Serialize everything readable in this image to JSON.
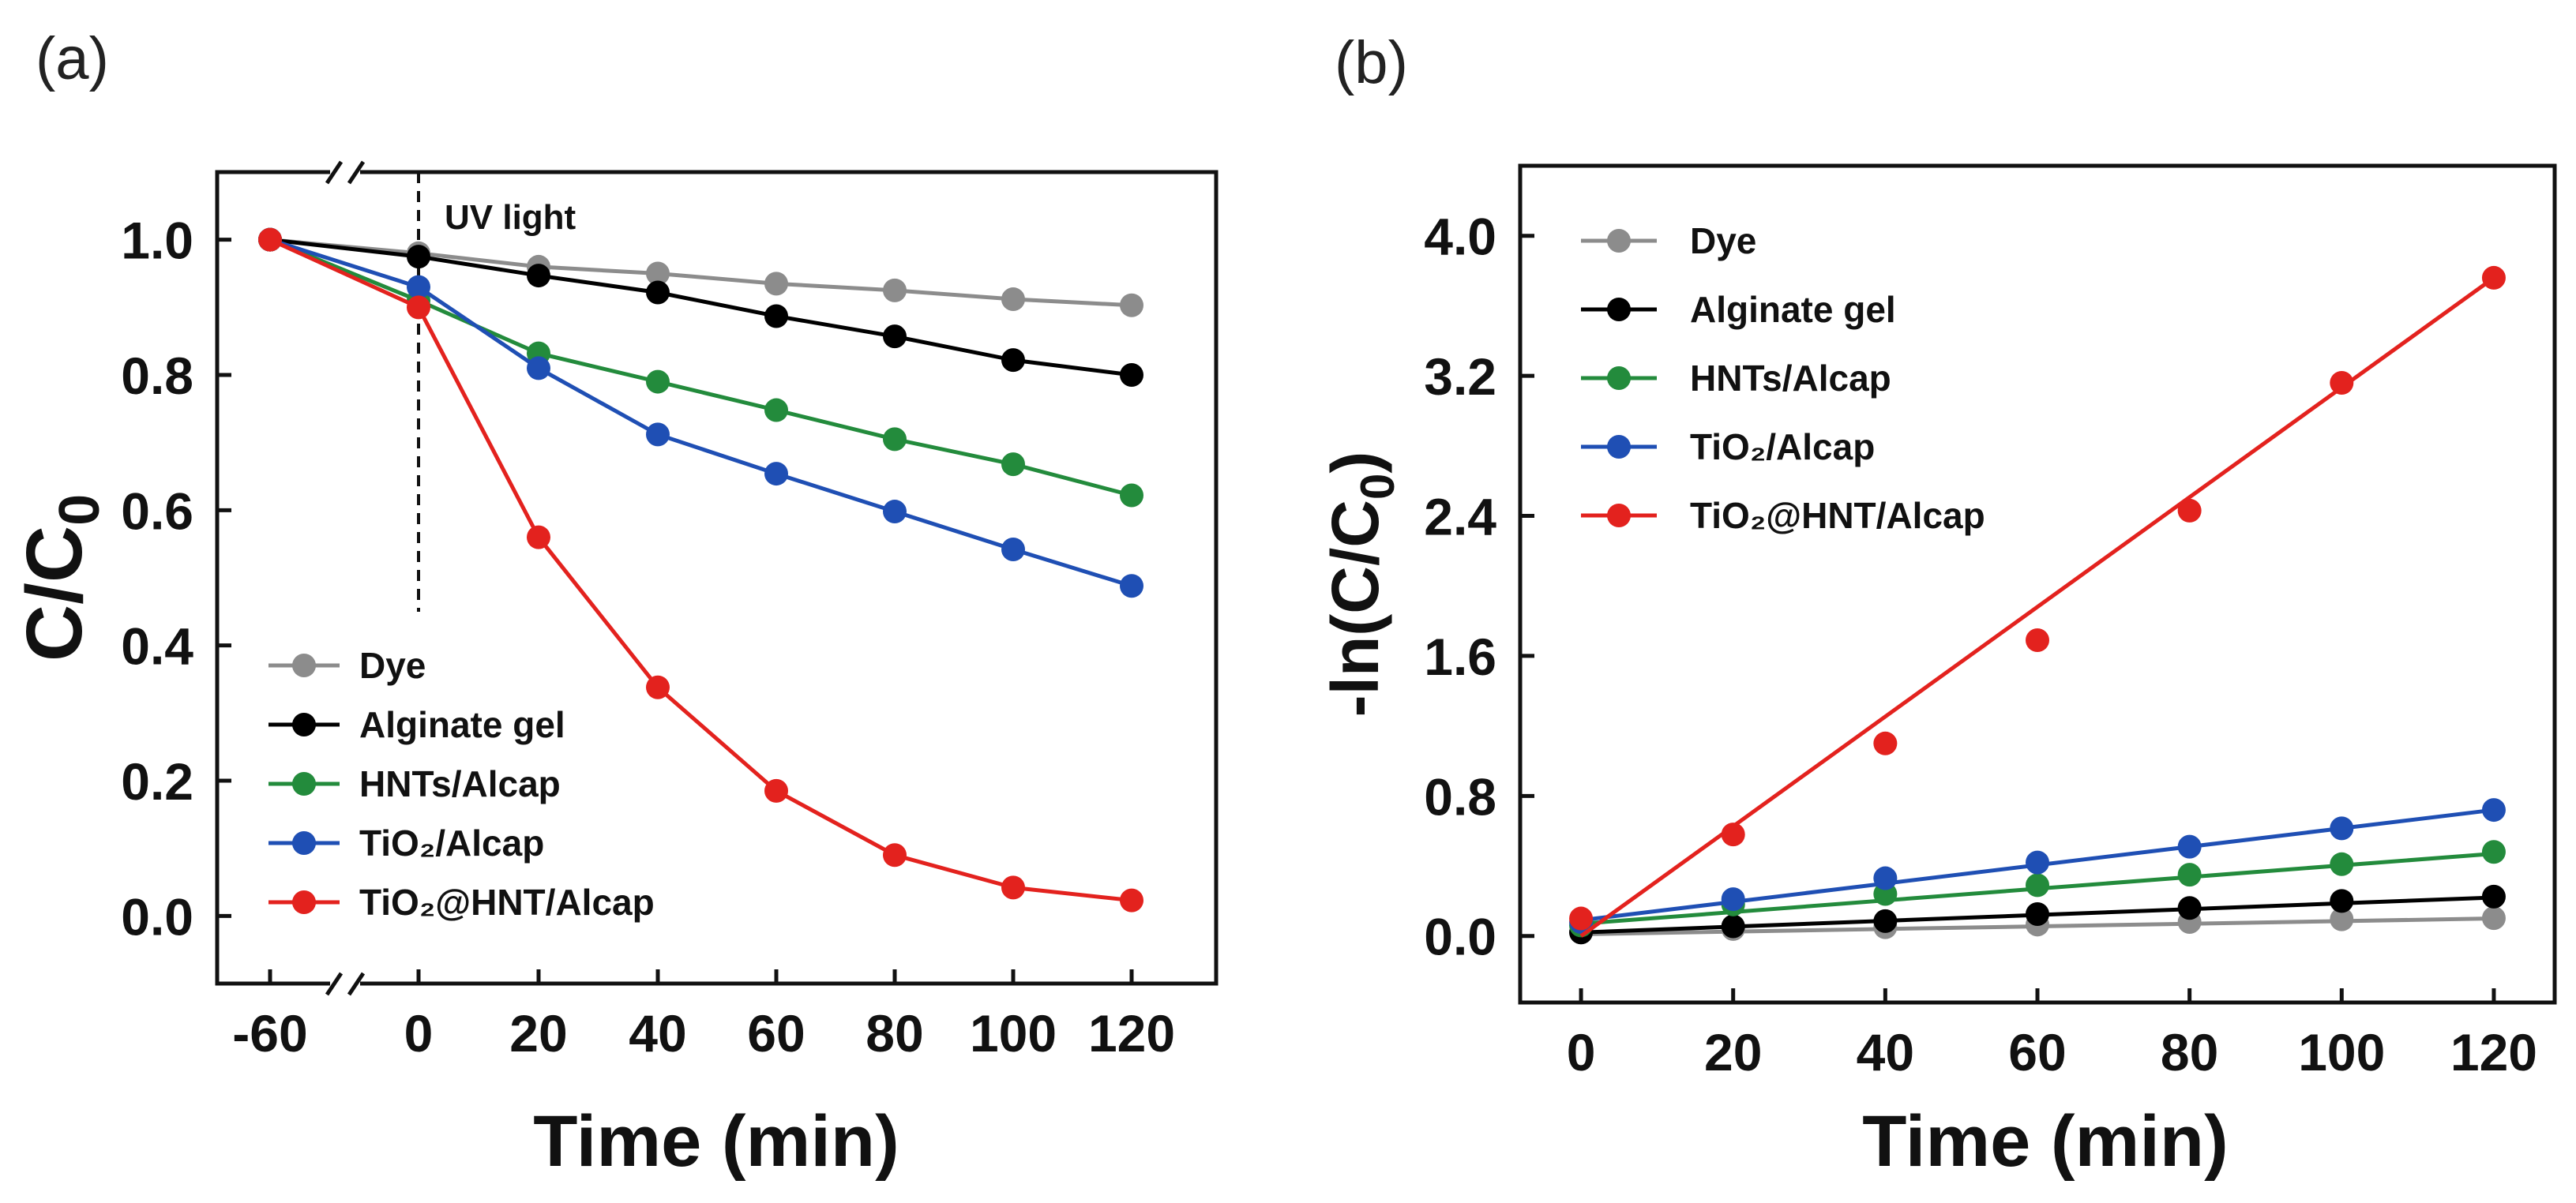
{
  "chart_data": [
    {
      "type": "line",
      "panel_label": "(a)",
      "xlabel": "Time (min)",
      "ylabel_main": "C/C",
      "ylabel_sub": "0",
      "x": [
        -60,
        0,
        20,
        40,
        60,
        80,
        100,
        120
      ],
      "x_ticks": [
        "-60",
        "0",
        "20",
        "40",
        "60",
        "80",
        "100",
        "120"
      ],
      "y_ticks": [
        "0.0",
        "0.2",
        "0.4",
        "0.6",
        "0.8",
        "1.0"
      ],
      "ylim": [
        -0.1,
        1.1
      ],
      "annotation": "UV light",
      "legend_position": "bottom-left",
      "series": [
        {
          "name": "Dye",
          "color": "#8c8c8c",
          "values": [
            1.0,
            0.98,
            0.96,
            0.95,
            0.935,
            0.925,
            0.912,
            0.903
          ]
        },
        {
          "name": "Alginate gel",
          "color": "#000000",
          "values": [
            1.0,
            0.975,
            0.947,
            0.922,
            0.887,
            0.857,
            0.822,
            0.8
          ]
        },
        {
          "name": "HNTs/Alcap",
          "color": "#238b3c",
          "values": [
            1.0,
            0.91,
            0.832,
            0.79,
            0.748,
            0.705,
            0.668,
            0.622
          ]
        },
        {
          "name": "TiO₂/Alcap",
          "color": "#1f4fb4",
          "values": [
            1.0,
            0.93,
            0.81,
            0.712,
            0.654,
            0.598,
            0.542,
            0.488
          ]
        },
        {
          "name": "TiO₂@HNT/Alcap",
          "color": "#e3221e",
          "values": [
            1.0,
            0.9,
            0.56,
            0.338,
            0.185,
            0.09,
            0.042,
            0.023
          ]
        }
      ]
    },
    {
      "type": "scatter",
      "panel_label": "(b)",
      "xlabel": "Time (min)",
      "ylabel_main": "-ln(C/C",
      "ylabel_sub": "0",
      "ylabel_end": ")",
      "x": [
        0,
        20,
        40,
        60,
        80,
        100,
        120
      ],
      "x_ticks": [
        "0",
        "20",
        "40",
        "60",
        "80",
        "100",
        "120"
      ],
      "y_ticks": [
        "0.0",
        "0.8",
        "1.6",
        "2.4",
        "3.2",
        "4.0"
      ],
      "ylim": [
        -0.38,
        4.4
      ],
      "xlim": [
        -8,
        128
      ],
      "legend_position": "top-left",
      "series": [
        {
          "name": "Dye",
          "color": "#8c8c8c",
          "values": [
            0.02,
            0.04,
            0.05,
            0.065,
            0.08,
            0.095,
            0.102
          ],
          "fit": [
            0.01,
            0.1
          ]
        },
        {
          "name": "Alginate gel",
          "color": "#000000",
          "values": [
            0.02,
            0.055,
            0.085,
            0.125,
            0.16,
            0.2,
            0.225
          ],
          "fit": [
            0.02,
            0.22
          ]
        },
        {
          "name": "HNTs/Alcap",
          "color": "#238b3c",
          "values": [
            0.06,
            0.18,
            0.24,
            0.29,
            0.35,
            0.41,
            0.48
          ],
          "fit": [
            0.07,
            0.47
          ]
        },
        {
          "name": "TiO₂/Alcap",
          "color": "#1f4fb4",
          "values": [
            0.08,
            0.21,
            0.33,
            0.42,
            0.51,
            0.615,
            0.72
          ],
          "fit": [
            0.09,
            0.72
          ]
        },
        {
          "name": "TiO₂@HNT/Alcap",
          "color": "#e3221e",
          "values": [
            0.1,
            0.58,
            1.1,
            1.69,
            2.43,
            3.16,
            3.76
          ],
          "fit": [
            0.0,
            3.76
          ]
        }
      ]
    }
  ]
}
